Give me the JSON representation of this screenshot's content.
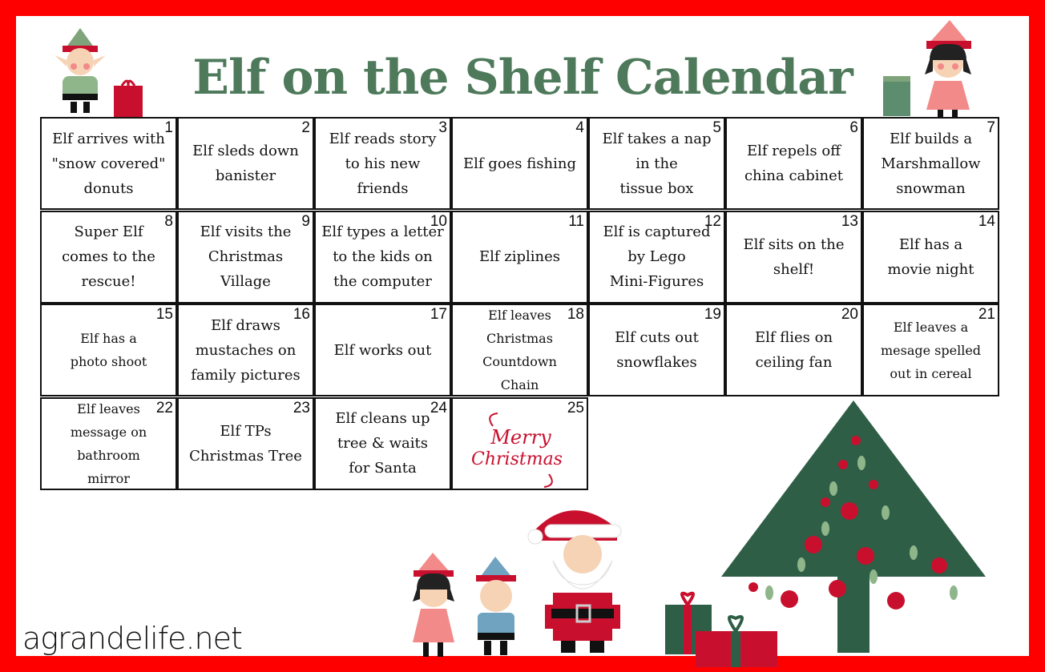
{
  "title": "Elf on the Shelf Calendar",
  "footer": "agrandelife.net",
  "merry_christmas": "Merry Christmas",
  "colors": {
    "border": "#ff0000",
    "title": "#4e7a5b",
    "accent_red": "#c8102e",
    "tree_green": "#2f5e47"
  },
  "cells": [
    {
      "day": "1",
      "text": "Elf arrives with\n\"snow covered\"\ndonuts"
    },
    {
      "day": "2",
      "text": "Elf sleds down\nbanister"
    },
    {
      "day": "3",
      "text": "Elf reads story\nto his new\nfriends"
    },
    {
      "day": "4",
      "text": "Elf goes fishing"
    },
    {
      "day": "5",
      "text": "Elf takes a nap\nin the\ntissue box"
    },
    {
      "day": "6",
      "text": "Elf repels off\nchina cabinet"
    },
    {
      "day": "7",
      "text": "Elf builds a\nMarshmallow\nsnowman"
    },
    {
      "day": "8",
      "text": "Super Elf\ncomes to the\nrescue!"
    },
    {
      "day": "9",
      "text": "Elf visits the\nChristmas\nVillage"
    },
    {
      "day": "10",
      "text": "Elf types a letter\nto the kids on\nthe computer"
    },
    {
      "day": "11",
      "text": "Elf ziplines"
    },
    {
      "day": "12",
      "text": "Elf is captured\nby Lego\nMini-Figures"
    },
    {
      "day": "13",
      "text": "Elf sits on the\nshelf!"
    },
    {
      "day": "14",
      "text": "Elf has a\nmovie night"
    },
    {
      "day": "15",
      "text": "Elf has a\nphoto shoot"
    },
    {
      "day": "16",
      "text": "Elf draws\nmustaches on\nfamily pictures"
    },
    {
      "day": "17",
      "text": "Elf works out"
    },
    {
      "day": "18",
      "text": "Elf leaves\nChristmas\nCountdown\nChain"
    },
    {
      "day": "19",
      "text": "Elf cuts out\nsnowflakes"
    },
    {
      "day": "20",
      "text": "Elf flies on\nceiling fan"
    },
    {
      "day": "21",
      "text": "Elf leaves a\nmesage spelled\nout in cereal"
    },
    {
      "day": "22",
      "text": "Elf leaves\nmessage on\nbathroom\nmirror"
    },
    {
      "day": "23",
      "text": "Elf TPs\nChristmas Tree"
    },
    {
      "day": "24",
      "text": "Elf cleans up\ntree & waits\nfor Santa"
    },
    {
      "day": "25",
      "text": ""
    }
  ]
}
